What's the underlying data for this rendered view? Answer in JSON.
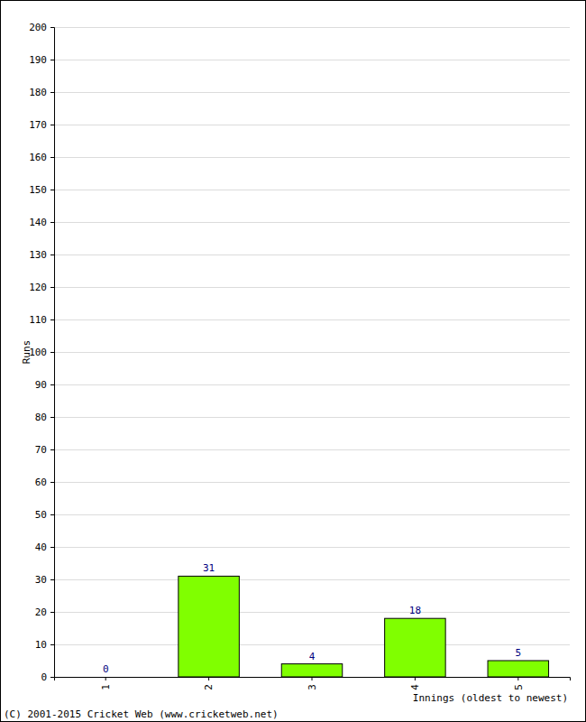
{
  "chart_data": {
    "type": "bar",
    "categories": [
      "1",
      "2",
      "3",
      "4",
      "5"
    ],
    "values": [
      0,
      31,
      4,
      18,
      5
    ],
    "color": "#80ff00",
    "ylim": [
      0,
      200
    ],
    "yticks": [
      0,
      10,
      20,
      30,
      40,
      50,
      60,
      70,
      80,
      90,
      100,
      110,
      120,
      130,
      140,
      150,
      160,
      170,
      180,
      190,
      200
    ],
    "grid": true,
    "data_labels": true,
    "y_label": "Runs",
    "x_label": "Innings (oldest to newest)",
    "annotations": [
      "(C) 2001-2015 Cricket Web (www.cricketweb.net)"
    ]
  }
}
